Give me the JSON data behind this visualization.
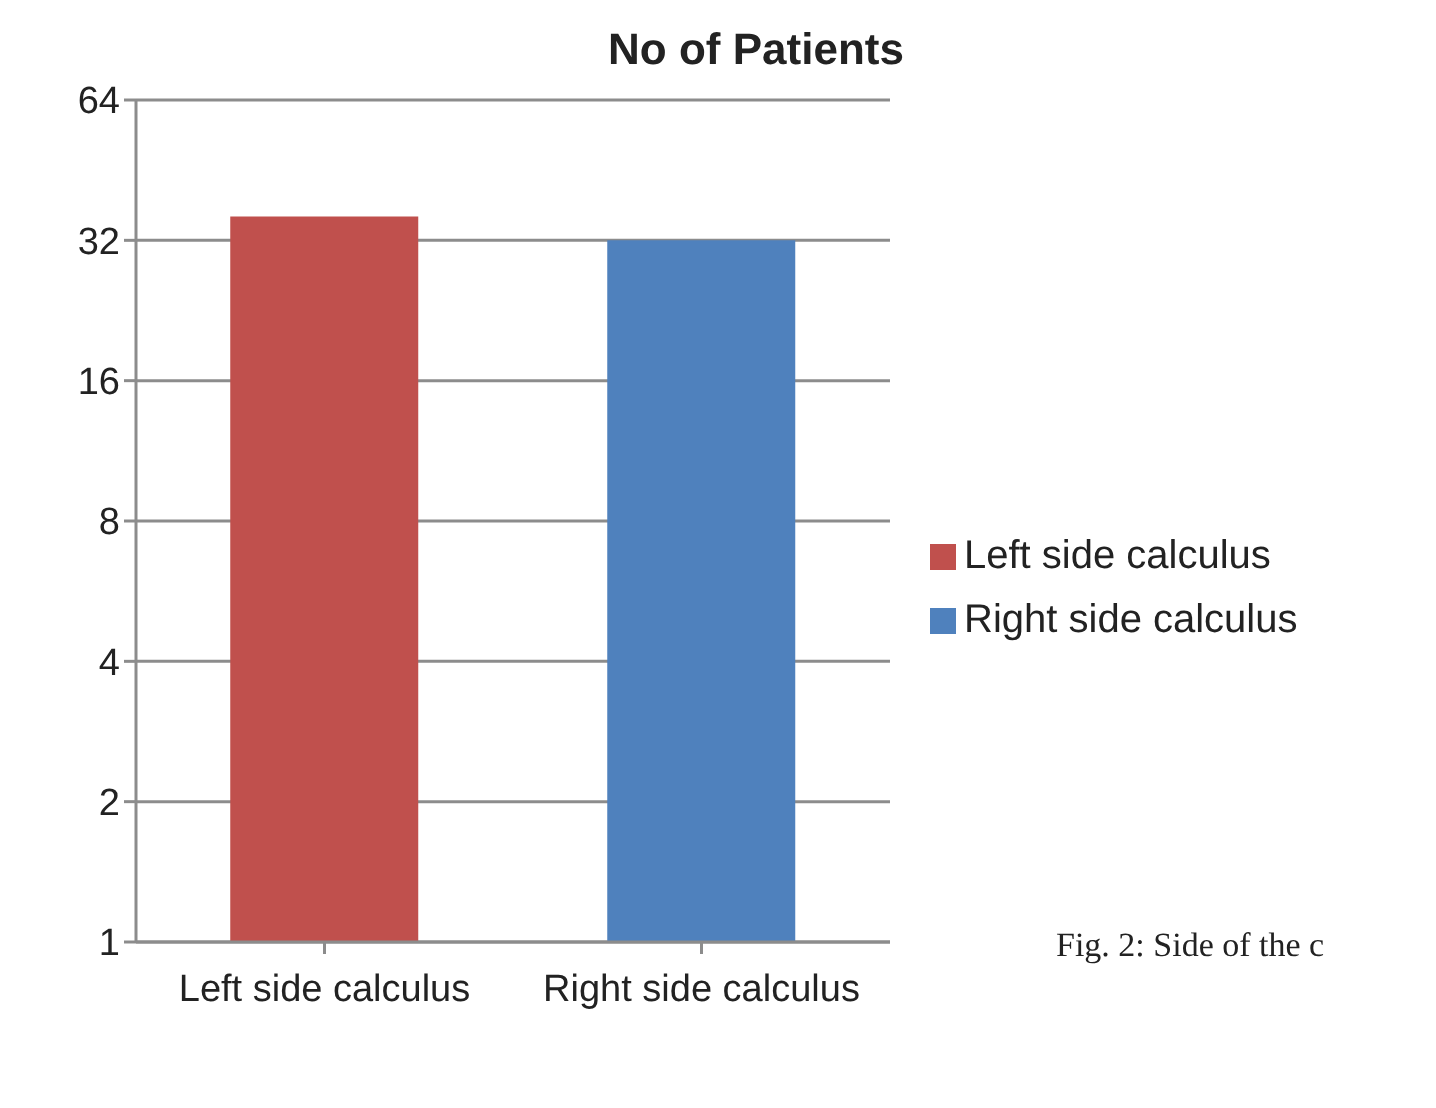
{
  "chart_data": {
    "type": "bar",
    "title": "No of Patients",
    "categories": [
      "Left side calculus",
      "Right side calculus"
    ],
    "series": [
      {
        "name": "Left side calculus",
        "color": "#c0504d",
        "values": [
          36,
          null
        ]
      },
      {
        "name": "Right side calculus",
        "color": "#4f81bd",
        "values": [
          null,
          32
        ]
      }
    ],
    "log": true,
    "ylim": [
      1,
      64
    ],
    "yticks": [
      1,
      2,
      4,
      8,
      16,
      32,
      64
    ],
    "grid": "y",
    "legend": "right",
    "annotations": [
      "Fig. 2: Side of the c"
    ]
  }
}
